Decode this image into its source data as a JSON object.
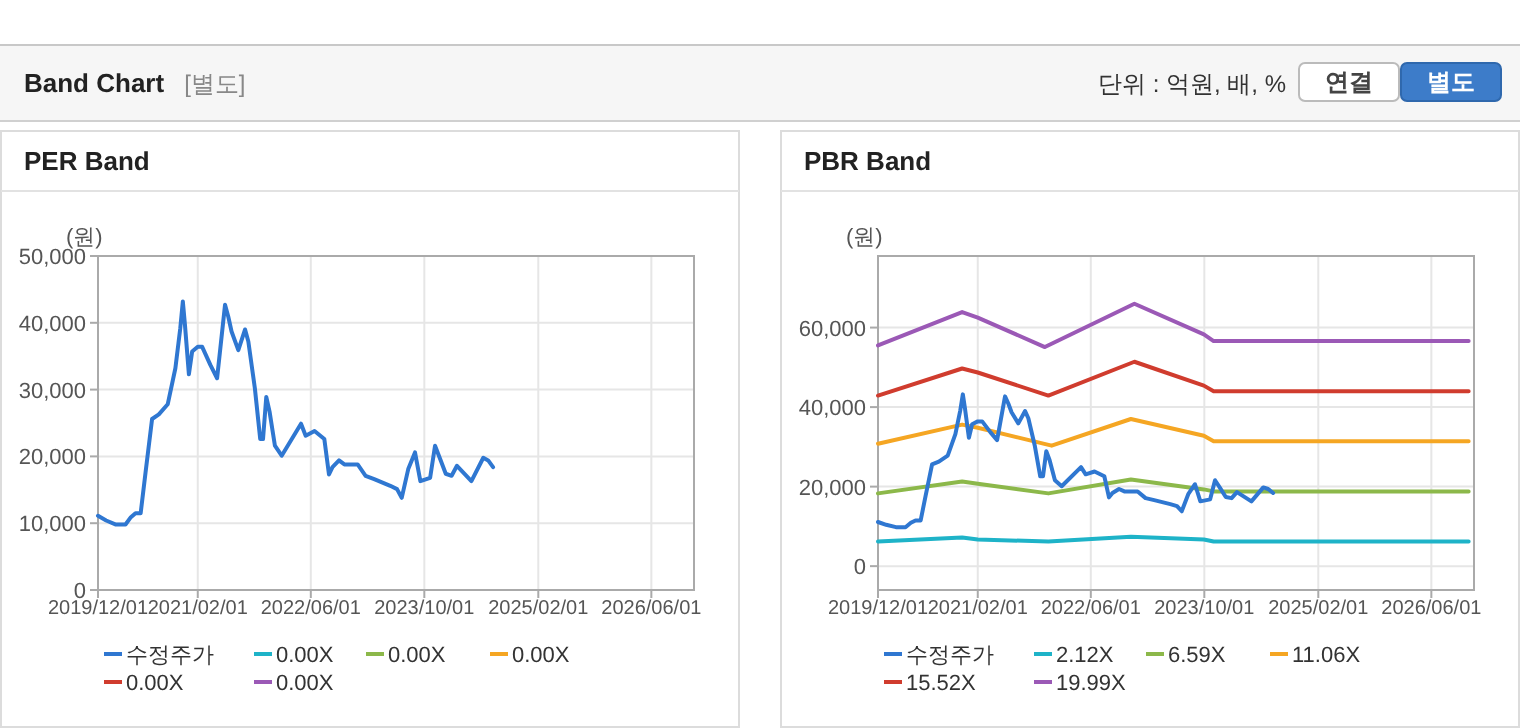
{
  "chart_data": [
    {
      "type": "other",
      "title": "Band Chart",
      "subtitle": "[별도]",
      "annotations": [
        "단위 : 억원, 배, %",
        "연결",
        "별도"
      ]
    },
    {
      "type": "line",
      "title": "PER Band",
      "ylabel": "(원)",
      "grid": true,
      "legend": "bottom",
      "marker": "none",
      "line_style": "solid",
      "xlim": [
        "2019-12-01",
        "2026-12-01"
      ],
      "xticks": [
        {
          "value": "2019-12-01",
          "label": "2019/12/01"
        },
        {
          "value": "2021-02-01",
          "label": "2021/02/01"
        },
        {
          "value": "2022-06-01",
          "label": "2022/06/01"
        },
        {
          "value": "2023-10-01",
          "label": "2023/10/01"
        },
        {
          "value": "2025-02-01",
          "label": "2025/02/01"
        },
        {
          "value": "2026-06-01",
          "label": "2026/06/01"
        }
      ],
      "ylim": [
        0,
        50000
      ],
      "yticks": [
        0,
        {
          "value": 10000,
          "label": "10,000"
        },
        {
          "value": 20000,
          "label": "20,000"
        },
        {
          "value": 30000,
          "label": "30,000"
        },
        {
          "value": 40000,
          "label": "40,000"
        },
        {
          "value": 50000,
          "label": "50,000"
        }
      ],
      "series": [
        {
          "name": "수정주가",
          "color": "#2f77d1",
          "x": [
            "2019-12-01",
            "2020-01-05",
            "2020-02-16",
            "2020-03-28",
            "2020-04-20",
            "2020-05-10",
            "2020-06-01",
            "2020-06-22",
            "2020-07-20",
            "2020-08-18",
            "2020-09-25",
            "2020-10-28",
            "2020-11-18",
            "2020-11-29",
            "2020-12-08",
            "2020-12-25",
            "2021-01-08",
            "2021-02-01",
            "2021-02-20",
            "2021-03-27",
            "2021-04-25",
            "2021-05-29",
            "2021-06-12",
            "2021-06-26",
            "2021-07-25",
            "2021-08-23",
            "2021-09-06",
            "2021-10-04",
            "2021-10-27",
            "2021-11-08",
            "2021-11-22",
            "2021-12-06",
            "2021-12-29",
            "2022-01-27",
            "2022-04-20",
            "2022-05-10",
            "2022-06-17",
            "2022-07-29",
            "2022-08-18",
            "2022-09-02",
            "2022-09-30",
            "2022-10-23",
            "2022-12-19",
            "2023-01-22",
            "2023-02-28",
            "2023-05-08",
            "2023-06-06",
            "2023-06-26",
            "2023-07-24",
            "2023-08-22",
            "2023-09-14",
            "2023-10-26",
            "2023-11-16",
            "2023-12-08",
            "2024-01-01",
            "2024-01-26",
            "2024-02-18",
            "2024-04-20",
            "2024-06-10",
            "2024-07-01",
            "2024-07-22"
          ],
          "values": [
            11100,
            10400,
            9800,
            9800,
            10900,
            11500,
            11500,
            17600,
            25600,
            26300,
            27800,
            33200,
            39200,
            43200,
            39700,
            32300,
            35700,
            36400,
            36400,
            33700,
            31700,
            42700,
            40900,
            38700,
            35900,
            39000,
            37200,
            30200,
            22600,
            22600,
            28900,
            26700,
            21600,
            20100,
            24900,
            23100,
            23800,
            22600,
            17300,
            18400,
            19400,
            18800,
            18800,
            17100,
            16600,
            15600,
            15100,
            13800,
            18100,
            20600,
            16300,
            16800,
            21600,
            19600,
            17400,
            17100,
            18600,
            16300,
            19800,
            19400,
            18400
          ]
        },
        {
          "name": "0.00X",
          "color": "#1eb3c8"
        },
        {
          "name": "0.00X",
          "color": "#8cb84a"
        },
        {
          "name": "0.00X",
          "color": "#f5a623"
        },
        {
          "name": "0.00X",
          "color": "#d03c2e"
        },
        {
          "name": "0.00X",
          "color": "#9b59b6"
        }
      ]
    },
    {
      "type": "line",
      "title": "PBR Band",
      "ylabel": "(원)",
      "grid": true,
      "legend": "bottom",
      "marker": "none",
      "line_style": "solid",
      "xlim": [
        "2019-12-01",
        "2026-12-01"
      ],
      "xticks": [
        {
          "value": "2019-12-01",
          "label": "2019/12/01"
        },
        {
          "value": "2021-02-01",
          "label": "2021/02/01"
        },
        {
          "value": "2022-06-01",
          "label": "2022/06/01"
        },
        {
          "value": "2023-10-01",
          "label": "2023/10/01"
        },
        {
          "value": "2025-02-01",
          "label": "2025/02/01"
        },
        {
          "value": "2026-06-01",
          "label": "2026/06/01"
        }
      ],
      "ylim": [
        -6000,
        78000
      ],
      "yticks": [
        0,
        {
          "value": 20000,
          "label": "20,000"
        },
        {
          "value": 40000,
          "label": "40,000"
        },
        {
          "value": 60000,
          "label": "60,000"
        }
      ],
      "series": [
        {
          "name": "수정주가",
          "color": "#2f77d1",
          "x": [
            "2019-12-01",
            "2020-01-05",
            "2020-02-16",
            "2020-03-28",
            "2020-04-20",
            "2020-05-10",
            "2020-06-01",
            "2020-06-22",
            "2020-07-20",
            "2020-08-18",
            "2020-09-25",
            "2020-10-28",
            "2020-11-18",
            "2020-11-29",
            "2020-12-08",
            "2020-12-25",
            "2021-01-08",
            "2021-02-01",
            "2021-02-20",
            "2021-03-27",
            "2021-04-25",
            "2021-05-29",
            "2021-06-12",
            "2021-06-26",
            "2021-07-25",
            "2021-08-23",
            "2021-09-06",
            "2021-10-04",
            "2021-10-27",
            "2021-11-08",
            "2021-11-22",
            "2021-12-06",
            "2021-12-29",
            "2022-01-27",
            "2022-04-20",
            "2022-05-10",
            "2022-06-17",
            "2022-07-29",
            "2022-08-18",
            "2022-09-02",
            "2022-09-30",
            "2022-10-23",
            "2022-12-19",
            "2023-01-22",
            "2023-02-28",
            "2023-05-08",
            "2023-06-06",
            "2023-06-26",
            "2023-07-24",
            "2023-08-22",
            "2023-09-14",
            "2023-10-26",
            "2023-11-16",
            "2023-12-08",
            "2024-01-01",
            "2024-01-26",
            "2024-02-18",
            "2024-04-20",
            "2024-06-10",
            "2024-07-01",
            "2024-07-22"
          ],
          "values": [
            11100,
            10400,
            9800,
            9800,
            10900,
            11500,
            11500,
            17600,
            25600,
            26300,
            27800,
            33200,
            39200,
            43200,
            39700,
            32300,
            35700,
            36400,
            36400,
            33700,
            31700,
            42700,
            40900,
            38700,
            35900,
            39000,
            37200,
            30200,
            22600,
            22600,
            28900,
            26700,
            21600,
            20100,
            24900,
            23100,
            23800,
            22600,
            17300,
            18400,
            19400,
            18800,
            18800,
            17100,
            16600,
            15600,
            15100,
            13800,
            18100,
            20600,
            16300,
            16800,
            21600,
            19600,
            17400,
            17100,
            18600,
            16300,
            19800,
            19400,
            18400
          ]
        },
        {
          "name": "2.12X",
          "color": "#1eb3c8",
          "x": [
            "2019-12-01",
            "2020-11-26",
            "2021-02-01",
            "2021-12-01",
            "2022-11-20",
            "2023-09-29",
            "2023-11-10",
            "2026-11-08"
          ],
          "values": [
            6200,
            7200,
            6700,
            6200,
            7400,
            6700,
            6200,
            6200
          ]
        },
        {
          "name": "6.59X",
          "color": "#8cb84a",
          "x": [
            "2019-12-01",
            "2020-11-26",
            "2021-02-01",
            "2021-12-01",
            "2022-11-20",
            "2023-09-29",
            "2023-11-10",
            "2026-11-08"
          ],
          "values": [
            18300,
            21300,
            20700,
            18300,
            21800,
            19300,
            18800,
            18800
          ]
        },
        {
          "name": "11.06X",
          "color": "#f5a623",
          "x": [
            "2019-12-01",
            "2020-11-26",
            "2021-02-01",
            "2021-12-15",
            "2022-11-20",
            "2023-09-29",
            "2023-11-10",
            "2026-11-08"
          ],
          "values": [
            30800,
            35600,
            34800,
            30300,
            37000,
            32800,
            31400,
            31400
          ]
        },
        {
          "name": "15.52X",
          "color": "#d03c2e",
          "x": [
            "2019-12-01",
            "2020-11-26",
            "2021-02-01",
            "2021-12-01",
            "2022-12-05",
            "2023-09-29",
            "2023-11-10",
            "2026-11-08"
          ],
          "values": [
            42900,
            49700,
            48700,
            42900,
            51400,
            45400,
            44000,
            44000
          ]
        },
        {
          "name": "19.99X",
          "color": "#9b59b6",
          "x": [
            "2019-12-01",
            "2020-11-26",
            "2021-02-01",
            "2021-11-16",
            "2022-12-05",
            "2023-09-29",
            "2023-11-10",
            "2026-11-08"
          ],
          "values": [
            55500,
            63900,
            62500,
            55100,
            66000,
            58300,
            56600,
            56600
          ]
        }
      ]
    }
  ]
}
